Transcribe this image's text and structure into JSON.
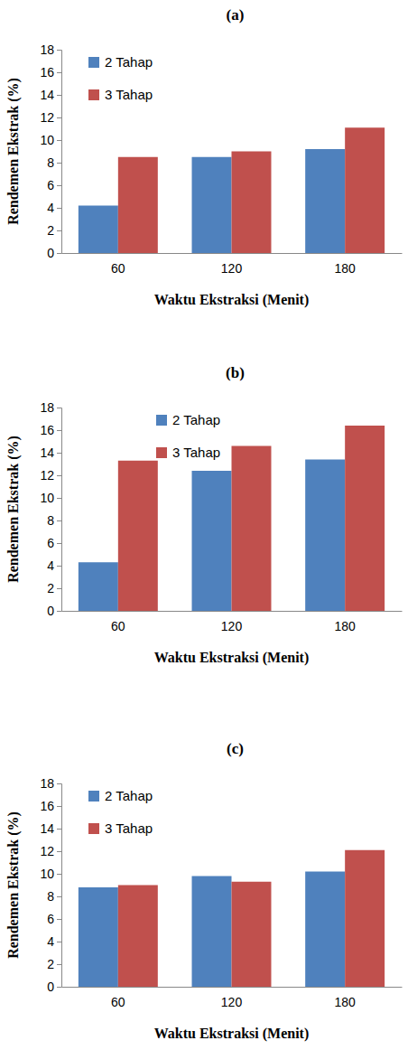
{
  "chart_data": [
    {
      "type": "bar",
      "title": "(a)",
      "x_label": "Waktu Ekstraksi (Menit)",
      "y_label": "Rendemen Ekstrak (%)",
      "categories": [
        "60",
        "120",
        "180"
      ],
      "series": [
        {
          "name": "2 Tahap",
          "color": "#4f81bd",
          "values": [
            4.2,
            8.5,
            9.2
          ]
        },
        {
          "name": "3 Tahap",
          "color": "#c0504d",
          "values": [
            8.5,
            9.0,
            11.1
          ]
        }
      ],
      "ylim": [
        0,
        18
      ],
      "yticks": [
        0,
        2,
        4,
        6,
        8,
        10,
        12,
        14,
        16,
        18
      ],
      "grid": false,
      "legend": "upper left"
    },
    {
      "type": "bar",
      "title": "(b)",
      "x_label": "Waktu Ekstraksi (Menit)",
      "y_label": "Rendemen Ekstrak (%)",
      "categories": [
        "60",
        "120",
        "180"
      ],
      "series": [
        {
          "name": "2 Tahap",
          "color": "#4f81bd",
          "values": [
            4.3,
            12.4,
            13.4
          ]
        },
        {
          "name": "3 Tahap",
          "color": "#c0504d",
          "values": [
            13.3,
            14.6,
            16.4
          ]
        }
      ],
      "ylim": [
        0,
        18
      ],
      "yticks": [
        0,
        2,
        4,
        6,
        8,
        10,
        12,
        14,
        16,
        18
      ],
      "grid": false,
      "legend": "upper left"
    },
    {
      "type": "bar",
      "title": "(c)",
      "x_label": "Waktu Ekstraksi (Menit)",
      "y_label": "Rendemen Ekstrak (%)",
      "categories": [
        "60",
        "120",
        "180"
      ],
      "series": [
        {
          "name": "2 Tahap",
          "color": "#4f81bd",
          "values": [
            8.8,
            9.8,
            10.2
          ]
        },
        {
          "name": "3 Tahap",
          "color": "#c0504d",
          "values": [
            9.0,
            9.3,
            12.1
          ]
        }
      ],
      "ylim": [
        0,
        18
      ],
      "yticks": [
        0,
        2,
        4,
        6,
        8,
        10,
        12,
        14,
        16,
        18
      ],
      "grid": false,
      "legend": "upper left"
    }
  ]
}
